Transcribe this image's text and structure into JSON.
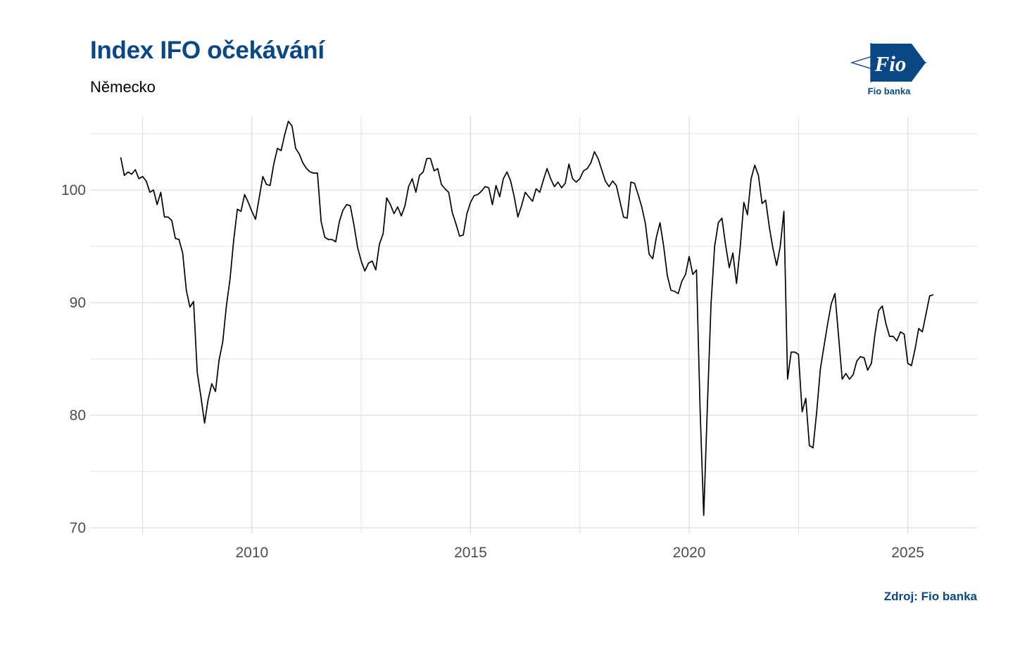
{
  "title": "Index IFO očekávání",
  "subtitle": "Německo",
  "source": "Zdroj: Fio banka",
  "logo": {
    "mark_text": "Fio",
    "caption": "Fio banka",
    "icon": "fio-logo-icon",
    "color": "#0a4785"
  },
  "chart_data": {
    "type": "line",
    "title": "Index IFO očekávání",
    "subtitle": "Německo",
    "xlabel": "",
    "ylabel": "",
    "xlim": [
      2006.3,
      2026.6
    ],
    "ylim": [
      69.5,
      106.5
    ],
    "x_ticks": [
      2010,
      2015,
      2020,
      2025
    ],
    "x_tick_labels": [
      "2010",
      "2015",
      "2020",
      "2025"
    ],
    "y_ticks": [
      70,
      80,
      90,
      100
    ],
    "y_tick_labels": [
      "70",
      "80",
      "90",
      "100"
    ],
    "grid": true,
    "legend": "none",
    "line_color": "#000000",
    "series": [
      {
        "x": [
          2007.0,
          2007.083,
          2007.167,
          2007.25,
          2007.333,
          2007.417,
          2007.5,
          2007.583,
          2007.667,
          2007.75,
          2007.833,
          2007.917,
          2008.0,
          2008.083,
          2008.167,
          2008.25,
          2008.333,
          2008.417,
          2008.5,
          2008.583,
          2008.667,
          2008.75,
          2008.833,
          2008.917,
          2009.0,
          2009.083,
          2009.167,
          2009.25,
          2009.333,
          2009.417,
          2009.5,
          2009.583,
          2009.667,
          2009.75,
          2009.833,
          2009.917,
          2010.0,
          2010.083,
          2010.167,
          2010.25,
          2010.333,
          2010.417,
          2010.5,
          2010.583,
          2010.667,
          2010.75,
          2010.833,
          2010.917,
          2011.0,
          2011.083,
          2011.167,
          2011.25,
          2011.333,
          2011.417,
          2011.5,
          2011.583,
          2011.667,
          2011.75,
          2011.833,
          2011.917,
          2012.0,
          2012.083,
          2012.167,
          2012.25,
          2012.333,
          2012.417,
          2012.5,
          2012.583,
          2012.667,
          2012.75,
          2012.833,
          2012.917,
          2013.0,
          2013.083,
          2013.167,
          2013.25,
          2013.333,
          2013.417,
          2013.5,
          2013.583,
          2013.667,
          2013.75,
          2013.833,
          2013.917,
          2014.0,
          2014.083,
          2014.167,
          2014.25,
          2014.333,
          2014.417,
          2014.5,
          2014.583,
          2014.667,
          2014.75,
          2014.833,
          2014.917,
          2015.0,
          2015.083,
          2015.167,
          2015.25,
          2015.333,
          2015.417,
          2015.5,
          2015.583,
          2015.667,
          2015.75,
          2015.833,
          2015.917,
          2016.0,
          2016.083,
          2016.167,
          2016.25,
          2016.333,
          2016.417,
          2016.5,
          2016.583,
          2016.667,
          2016.75,
          2016.833,
          2016.917,
          2017.0,
          2017.083,
          2017.167,
          2017.25,
          2017.333,
          2017.417,
          2017.5,
          2017.583,
          2017.667,
          2017.75,
          2017.833,
          2017.917,
          2018.0,
          2018.083,
          2018.167,
          2018.25,
          2018.333,
          2018.417,
          2018.5,
          2018.583,
          2018.667,
          2018.75,
          2018.833,
          2018.917,
          2019.0,
          2019.083,
          2019.167,
          2019.25,
          2019.333,
          2019.417,
          2019.5,
          2019.583,
          2019.667,
          2019.75,
          2019.833,
          2019.917,
          2020.0,
          2020.083,
          2020.167,
          2020.25,
          2020.333,
          2020.417,
          2020.5,
          2020.583,
          2020.667,
          2020.75,
          2020.833,
          2020.917,
          2021.0,
          2021.083,
          2021.167,
          2021.25,
          2021.333,
          2021.417,
          2021.5,
          2021.583,
          2021.667,
          2021.75,
          2021.833,
          2021.917,
          2022.0,
          2022.083,
          2022.167,
          2022.25,
          2022.333,
          2022.417,
          2022.5,
          2022.583,
          2022.667,
          2022.75,
          2022.833,
          2022.917,
          2023.0,
          2023.083,
          2023.167,
          2023.25,
          2023.333,
          2023.417,
          2023.5,
          2023.583,
          2023.667,
          2023.75,
          2023.833,
          2023.917,
          2024.0,
          2024.083,
          2024.167,
          2024.25,
          2024.333,
          2024.417,
          2024.5,
          2024.583,
          2024.667,
          2024.75,
          2024.833,
          2024.917,
          2025.0,
          2025.083,
          2025.167,
          2025.25,
          2025.333,
          2025.417,
          2025.5,
          2025.583
        ],
        "values": [
          102.9,
          101.3,
          101.6,
          101.4,
          101.8,
          101.0,
          101.2,
          100.8,
          99.8,
          100.0,
          98.7,
          99.8,
          97.6,
          97.6,
          97.3,
          95.7,
          95.6,
          94.4,
          91.1,
          89.6,
          90.1,
          83.8,
          81.7,
          79.3,
          81.4,
          82.8,
          82.1,
          84.9,
          86.5,
          89.7,
          92.1,
          95.5,
          98.3,
          98.1,
          99.6,
          98.9,
          98.1,
          97.4,
          99.3,
          101.2,
          100.5,
          100.4,
          102.3,
          103.7,
          103.5,
          104.9,
          106.1,
          105.7,
          103.7,
          103.2,
          102.4,
          101.9,
          101.6,
          101.5,
          101.5,
          97.2,
          95.8,
          95.6,
          95.6,
          95.4,
          97.2,
          98.2,
          98.7,
          98.6,
          96.9,
          94.9,
          93.7,
          92.8,
          93.5,
          93.7,
          92.9,
          95.2,
          96.1,
          99.3,
          98.7,
          97.9,
          98.5,
          97.7,
          98.6,
          100.3,
          101.0,
          99.8,
          101.3,
          101.6,
          102.8,
          102.8,
          101.7,
          101.9,
          100.5,
          100.1,
          99.8,
          98.0,
          97.0,
          95.9,
          96.0,
          97.9,
          98.9,
          99.5,
          99.6,
          99.9,
          100.3,
          100.2,
          98.7,
          100.4,
          99.4,
          101.0,
          101.6,
          100.8,
          99.4,
          97.6,
          98.6,
          99.8,
          99.4,
          99.0,
          100.1,
          99.8,
          100.9,
          101.9,
          101.0,
          100.3,
          100.7,
          100.2,
          100.6,
          102.3,
          101.0,
          100.7,
          101.0,
          101.7,
          101.9,
          102.4,
          103.4,
          102.8,
          101.8,
          100.8,
          100.3,
          100.8,
          100.4,
          99.0,
          97.6,
          97.5,
          100.7,
          100.6,
          99.6,
          98.5,
          97.0,
          94.3,
          93.9,
          95.8,
          97.1,
          95.0,
          92.4,
          91.1,
          91.0,
          90.8,
          91.9,
          92.5,
          94.1,
          92.5,
          92.9,
          80.6,
          71.1,
          80.8,
          89.9,
          95.0,
          97.1,
          97.5,
          95.1,
          93.1,
          94.4,
          91.7,
          94.9,
          98.9,
          97.8,
          101.0,
          102.2,
          101.3,
          98.8,
          99.1,
          96.7,
          94.8,
          93.3,
          95.0,
          98.1,
          83.2,
          85.6,
          85.6,
          85.4,
          80.3,
          81.5,
          77.3,
          77.1,
          80.3,
          84.1,
          86.1,
          88.1,
          89.9,
          90.8,
          87.0,
          83.2,
          83.7,
          83.2,
          83.6,
          84.8,
          85.2,
          85.1,
          84.0,
          84.6,
          87.2,
          89.3,
          89.7,
          88.1,
          87.0,
          87.0,
          86.6,
          87.4,
          87.2,
          84.6,
          84.4,
          85.9,
          87.7,
          87.4,
          89.0,
          90.6,
          90.7
        ]
      }
    ]
  }
}
